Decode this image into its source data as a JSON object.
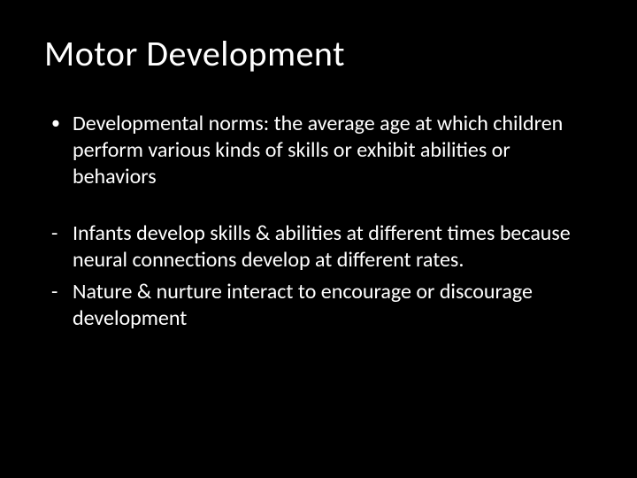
{
  "slide": {
    "title": "Motor Development",
    "bullets": [
      {
        "marker": "•",
        "text": "Developmental norms: the average age at which children perform various kinds of skills or exhibit abilities or behaviors"
      }
    ],
    "dashes": [
      {
        "marker": "-",
        "text": "Infants develop skills & abilities at different times because neural connections develop at different rates."
      },
      {
        "marker": "-",
        "text": "Nature & nurture interact to encourage or discourage development"
      }
    ],
    "colors": {
      "background": "#000000",
      "text": "#ffffff"
    },
    "typography": {
      "title_fontsize": 40,
      "body_fontsize": 24,
      "font_family": "Calibri"
    }
  }
}
